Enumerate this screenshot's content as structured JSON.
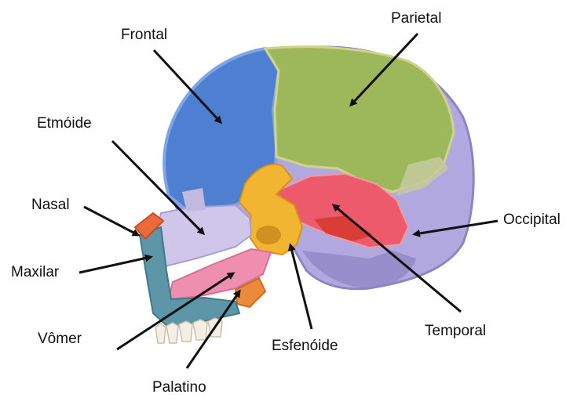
{
  "diagram": {
    "subject": "Skull sagittal section",
    "labels": {
      "frontal": "Frontal",
      "parietal": "Parietal",
      "etmoide": "Etmóide",
      "nasal": "Nasal",
      "maxilar": "Maxilar",
      "occipital": "Occipital",
      "vomer": "Vômer",
      "esfenoide": "Esfenóide",
      "temporal": "Temporal",
      "palatino": "Palatino"
    },
    "colors": {
      "frontal": "#4f7fd0",
      "parietal": "#9db85a",
      "occipital": "#b2a8e0",
      "temporal": "#ec5a6c",
      "sphenoid": "#f2b531",
      "ethmoid": "#cfc6ea",
      "vomer": "#ef8fb0",
      "maxilla": "#5d96a6",
      "nasal": "#ec6a3a",
      "palatine": "#ea8a3b",
      "arrow": "#111111"
    }
  }
}
